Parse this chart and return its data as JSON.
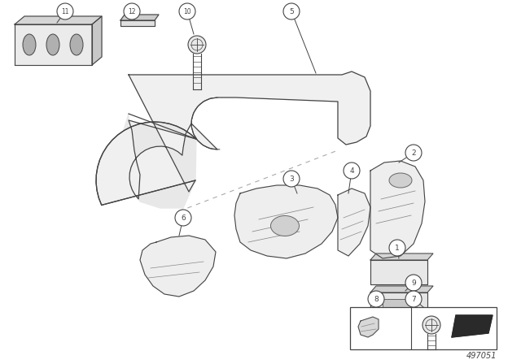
{
  "background_color": "#ffffff",
  "part_number": "497051",
  "line_color": "#444444",
  "fig_width": 6.4,
  "fig_height": 4.48,
  "dpi": 100,
  "callout_r": 0.1
}
